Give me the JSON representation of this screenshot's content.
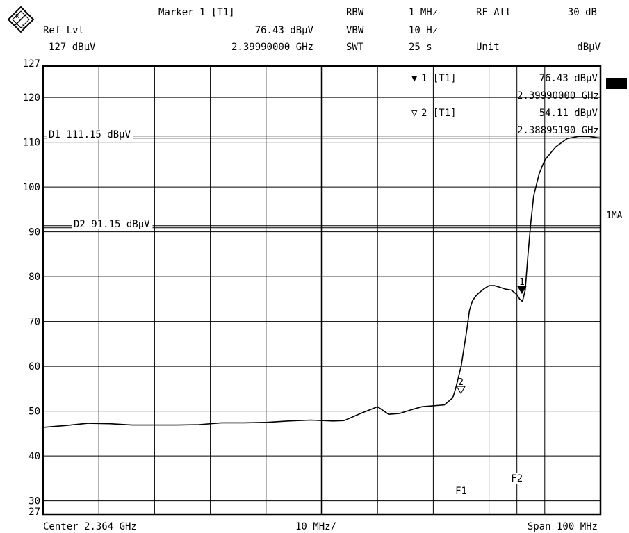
{
  "header": {
    "logo_text": "R&S",
    "marker_label": "Marker 1 [T1]",
    "ref_lvl_label": "Ref Lvl",
    "ref_lvl_value": "127 dBµV",
    "marker_level": "76.43 dBµV",
    "marker_freq": "2.39990000 GHz",
    "rbw_label": "RBW",
    "rbw_value": "1 MHz",
    "vbw_label": "VBW",
    "vbw_value": "10 Hz",
    "swt_label": "SWT",
    "swt_value": "25 s",
    "rfatt_label": "RF Att",
    "rfatt_value": "30 dB",
    "unit_label": "Unit",
    "unit_value": "dBµV"
  },
  "footer": {
    "center": "Center 2.364 GHz",
    "div": "10 MHz/",
    "span": "Span 100 MHz"
  },
  "side_labels": {
    "trace_mode": "1MA"
  },
  "marker_table": {
    "m1_label": "1 [T1]",
    "m1_level": "76.43 dBµV",
    "m1_freq": "2.39990000 GHz",
    "m2_label": "2 [T1]",
    "m2_level": "54.11 dBµV",
    "m2_freq": "2.38895190 GHz"
  },
  "chart_data": {
    "type": "line",
    "xlim": [
      2.314,
      2.414
    ],
    "xunit": "GHz",
    "ylim": [
      27,
      127
    ],
    "yunit": "dBµV",
    "yticks": [
      127,
      120,
      110,
      100,
      90,
      80,
      70,
      60,
      50,
      40,
      30,
      27
    ],
    "grid": true,
    "display_lines": [
      {
        "name": "D1",
        "label": "D1 111.15 dBµV",
        "value": 111.15
      },
      {
        "name": "D2",
        "label": "D2 91.15 dBµV",
        "value": 91.15
      }
    ],
    "freq_lines": [
      {
        "name": "F1",
        "label": "F1",
        "x": 2.389
      },
      {
        "name": "F2",
        "label": "F2",
        "x": 2.399
      }
    ],
    "markers": [
      {
        "id": "1",
        "x": 2.3999,
        "y": 76.43,
        "glyph": "▼"
      },
      {
        "id": "2",
        "x": 2.38895,
        "y": 54.11,
        "glyph": "▽"
      }
    ],
    "series": [
      {
        "x": [
          2.314,
          2.318,
          2.322,
          2.326,
          2.33,
          2.334,
          2.338,
          2.342,
          2.346,
          2.35,
          2.354,
          2.358,
          2.362,
          2.366,
          2.368,
          2.371,
          2.374,
          2.376,
          2.378,
          2.38,
          2.382,
          2.384,
          2.386,
          2.3875,
          2.388,
          2.3885,
          2.389,
          2.3895,
          2.39,
          2.3905,
          2.391,
          2.3915,
          2.392,
          2.393,
          2.394,
          2.395,
          2.396,
          2.397,
          2.398,
          2.399,
          2.3995,
          2.4,
          2.4005,
          2.401,
          2.4015,
          2.402,
          2.403,
          2.404,
          2.405,
          2.406,
          2.408,
          2.41,
          2.412,
          2.414
        ],
        "y": [
          46.4,
          46.8,
          47.3,
          47.2,
          46.9,
          46.9,
          46.9,
          47.0,
          47.4,
          47.4,
          47.5,
          47.8,
          48.0,
          47.8,
          47.9,
          49.5,
          51.0,
          49.3,
          49.5,
          50.3,
          51.0,
          51.2,
          51.4,
          53.0,
          55.0,
          57.5,
          60.0,
          64.0,
          68.0,
          72.5,
          74.5,
          75.5,
          76.2,
          77.2,
          78.0,
          78.0,
          77.6,
          77.2,
          77.0,
          76.0,
          75.0,
          74.5,
          77.0,
          85.0,
          92.0,
          98.0,
          103.0,
          106.0,
          107.5,
          109.0,
          110.8,
          111.3,
          111.3,
          110.9
        ]
      }
    ]
  }
}
